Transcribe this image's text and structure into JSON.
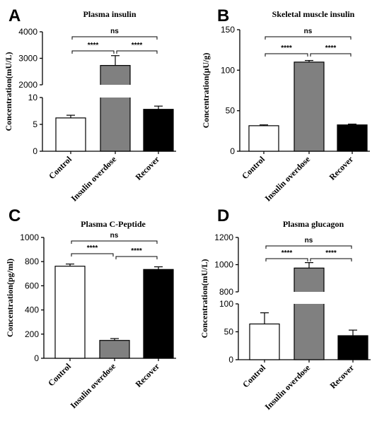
{
  "chart_data": [
    {
      "letter": "A",
      "type": "bar",
      "title": "Plasma insulin",
      "ylabel": "Concentration(mU/L)",
      "broken_axis": true,
      "ylim_lower": [
        0,
        10
      ],
      "yticks_lower": [
        0,
        5,
        10
      ],
      "ylim_upper": [
        2000,
        4000
      ],
      "yticks_upper": [
        2000,
        3000,
        4000
      ],
      "categories": [
        "Control",
        "Insulin overdose",
        "Recover"
      ],
      "values": [
        6.2,
        2730,
        7.8
      ],
      "errors": [
        0.5,
        370,
        0.6
      ],
      "bar_colors": [
        "#ffffff",
        "#808080",
        "#000000"
      ],
      "comparisons": [
        {
          "from": 0,
          "to": 1,
          "label": "****"
        },
        {
          "from": 1,
          "to": 2,
          "label": "****"
        },
        {
          "from": 0,
          "to": 2,
          "label": "ns"
        }
      ]
    },
    {
      "letter": "B",
      "type": "bar",
      "title": "Skeletal muscle insulin",
      "ylabel": "Concentration(μU/g)",
      "broken_axis": false,
      "ylim": [
        0,
        150
      ],
      "yticks": [
        0,
        50,
        100,
        150
      ],
      "categories": [
        "Control",
        "Insulin overdose",
        "Recover"
      ],
      "values": [
        31.5,
        110,
        32.5
      ],
      "errors": [
        1,
        2,
        1
      ],
      "bar_colors": [
        "#ffffff",
        "#808080",
        "#000000"
      ],
      "comparisons": [
        {
          "from": 0,
          "to": 1,
          "label": "****"
        },
        {
          "from": 1,
          "to": 2,
          "label": "****"
        },
        {
          "from": 0,
          "to": 2,
          "label": "ns"
        }
      ]
    },
    {
      "letter": "C",
      "type": "bar",
      "title": "Plasma C-Peptide",
      "ylabel": "Concentration(pg/ml)",
      "broken_axis": false,
      "ylim": [
        0,
        1000
      ],
      "yticks": [
        0,
        200,
        400,
        600,
        800,
        1000
      ],
      "categories": [
        "Control",
        "Insulin overdose",
        "Recover"
      ],
      "values": [
        762,
        148,
        735
      ],
      "errors": [
        18,
        15,
        22
      ],
      "bar_colors": [
        "#ffffff",
        "#808080",
        "#000000"
      ],
      "comparisons": [
        {
          "from": 0,
          "to": 1,
          "label": "****"
        },
        {
          "from": 1,
          "to": 2,
          "label": "****"
        },
        {
          "from": 0,
          "to": 2,
          "label": "ns"
        }
      ]
    },
    {
      "letter": "D",
      "type": "bar",
      "title": "Plasma glucagon",
      "ylabel": "Concentration(mU/L)",
      "broken_axis": true,
      "ylim_lower": [
        0,
        100
      ],
      "yticks_lower": [
        0,
        50,
        100
      ],
      "ylim_upper": [
        800,
        1200
      ],
      "yticks_upper": [
        800,
        1000,
        1200
      ],
      "categories": [
        "Control",
        "Insulin overdose",
        "Recover"
      ],
      "values": [
        64,
        975,
        43
      ],
      "errors": [
        20,
        40,
        10
      ],
      "bar_colors": [
        "#ffffff",
        "#808080",
        "#000000"
      ],
      "comparisons": [
        {
          "from": 0,
          "to": 1,
          "label": "****"
        },
        {
          "from": 1,
          "to": 2,
          "label": "****"
        },
        {
          "from": 0,
          "to": 2,
          "label": "ns"
        }
      ]
    }
  ]
}
